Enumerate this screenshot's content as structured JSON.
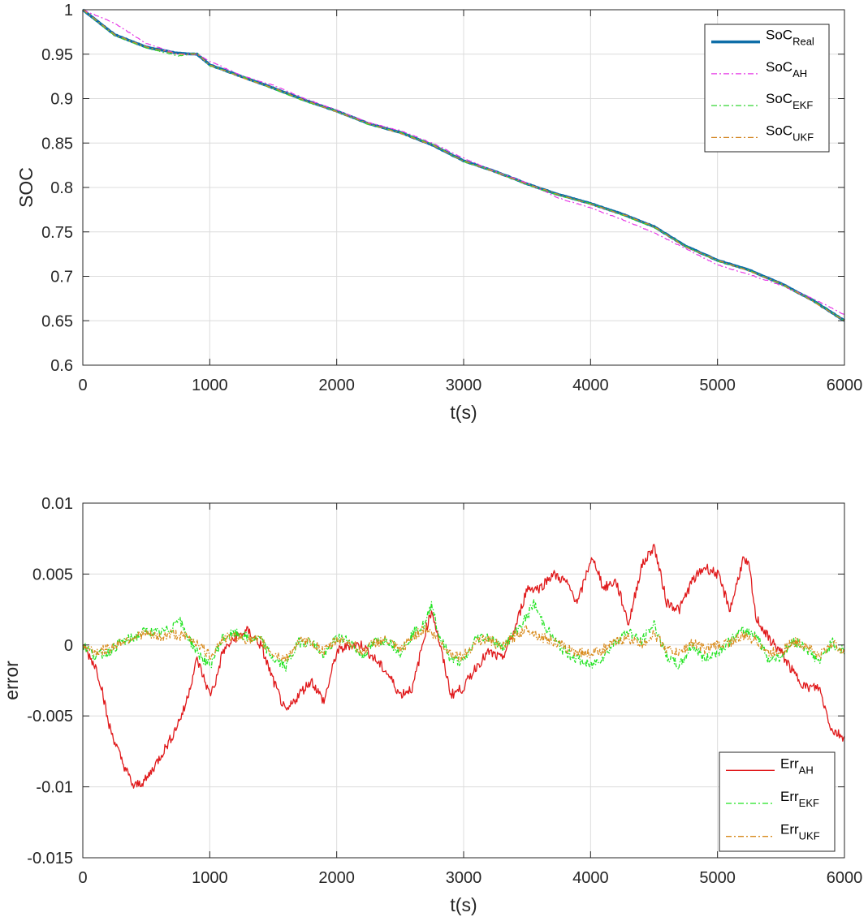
{
  "colors": {
    "real": "#0e6ea8",
    "ah": "#e637e6",
    "ekf": "#33d633",
    "ukf": "#d58a2a",
    "err_ah": "#e0191b",
    "err_ekf": "#21e321",
    "err_ukf": "#d88a1c",
    "grid": "#dcdcdc",
    "axis": "#262626"
  },
  "chart_data": [
    {
      "type": "line",
      "xlabel": "t(s)",
      "ylabel": "SOC",
      "xlim": [
        0,
        6000
      ],
      "ylim": [
        0.6,
        1
      ],
      "grid": true,
      "legend_position": "top-right",
      "xticks": [
        0,
        1000,
        2000,
        3000,
        4000,
        5000,
        6000
      ],
      "xtick_labels": [
        "0",
        "1000",
        "2000",
        "3000",
        "4000",
        "5000",
        "6000"
      ],
      "yticks": [
        0.6,
        0.65,
        0.7,
        0.75,
        0.8,
        0.85,
        0.9,
        0.95,
        1
      ],
      "ytick_labels": [
        "0.6",
        "0.65",
        "0.7",
        "0.75",
        "0.8",
        "0.85",
        "0.9",
        "0.95",
        "1"
      ],
      "series": [
        {
          "name": "SoC",
          "sub": "Real",
          "color_key": "real",
          "style": "solid-thick",
          "x": [
            0,
            250,
            500,
            750,
            900,
            1000,
            1250,
            1500,
            1750,
            2000,
            2250,
            2500,
            2750,
            3000,
            3250,
            3500,
            3750,
            4000,
            4250,
            4500,
            4750,
            5000,
            5250,
            5500,
            5750,
            6000
          ],
          "y": [
            1.0,
            0.972,
            0.958,
            0.951,
            0.95,
            0.938,
            0.925,
            0.912,
            0.898,
            0.886,
            0.872,
            0.862,
            0.848,
            0.83,
            0.818,
            0.804,
            0.792,
            0.782,
            0.77,
            0.756,
            0.734,
            0.718,
            0.707,
            0.692,
            0.673,
            0.65
          ]
        },
        {
          "name": "SoC",
          "sub": "AH",
          "color_key": "ah",
          "style": "dashdot",
          "x": [
            0,
            250,
            500,
            750,
            900,
            1000,
            1250,
            1500,
            1750,
            2000,
            2250,
            2500,
            2750,
            3000,
            3250,
            3500,
            3750,
            4000,
            4250,
            4500,
            4750,
            5000,
            5250,
            5500,
            5750,
            6000
          ],
          "y": [
            1.0,
            0.985,
            0.962,
            0.95,
            0.95,
            0.942,
            0.926,
            0.915,
            0.9,
            0.887,
            0.873,
            0.864,
            0.85,
            0.833,
            0.818,
            0.805,
            0.788,
            0.777,
            0.764,
            0.749,
            0.731,
            0.713,
            0.702,
            0.69,
            0.675,
            0.657
          ]
        },
        {
          "name": "SoC",
          "sub": "EKF",
          "color_key": "ekf",
          "style": "dashdot",
          "x": [
            0,
            250,
            500,
            750,
            900,
            1000,
            1250,
            1500,
            1750,
            2000,
            2250,
            2500,
            2750,
            3000,
            3250,
            3500,
            3750,
            4000,
            4250,
            4500,
            4750,
            5000,
            5250,
            5500,
            5750,
            6000
          ],
          "y": [
            1.0,
            0.971,
            0.957,
            0.948,
            0.951,
            0.937,
            0.925,
            0.911,
            0.897,
            0.886,
            0.871,
            0.862,
            0.849,
            0.829,
            0.818,
            0.803,
            0.791,
            0.782,
            0.769,
            0.755,
            0.734,
            0.717,
            0.707,
            0.691,
            0.673,
            0.65
          ]
        },
        {
          "name": "SoC",
          "sub": "UKF",
          "color_key": "ukf",
          "style": "dashdot",
          "x": [
            0,
            250,
            500,
            750,
            900,
            1000,
            1250,
            1500,
            1750,
            2000,
            2250,
            2500,
            2750,
            3000,
            3250,
            3500,
            3750,
            4000,
            4250,
            4500,
            4750,
            5000,
            5250,
            5500,
            5750,
            6000
          ],
          "y": [
            1.0,
            0.972,
            0.958,
            0.95,
            0.95,
            0.938,
            0.924,
            0.912,
            0.898,
            0.885,
            0.872,
            0.861,
            0.848,
            0.83,
            0.817,
            0.804,
            0.792,
            0.781,
            0.77,
            0.756,
            0.733,
            0.718,
            0.706,
            0.692,
            0.672,
            0.65
          ]
        }
      ]
    },
    {
      "type": "line",
      "xlabel": "t(s)",
      "ylabel": "error",
      "xlim": [
        0,
        6000
      ],
      "ylim": [
        -0.015,
        0.01
      ],
      "grid": true,
      "legend_position": "bottom-right",
      "xticks": [
        0,
        1000,
        2000,
        3000,
        4000,
        5000,
        6000
      ],
      "xtick_labels": [
        "0",
        "1000",
        "2000",
        "3000",
        "4000",
        "5000",
        "6000"
      ],
      "yticks": [
        -0.015,
        -0.01,
        -0.005,
        0,
        0.005,
        0.01
      ],
      "ytick_labels": [
        "-0.015",
        "-0.01",
        "-0.005",
        "0",
        "0.005",
        "0.01"
      ],
      "series": [
        {
          "name": "Err",
          "sub": "AH",
          "color_key": "err_ah",
          "style": "solid",
          "x": [
            0,
            100,
            150,
            200,
            300,
            400,
            500,
            600,
            700,
            800,
            900,
            1000,
            1050,
            1100,
            1200,
            1300,
            1400,
            1500,
            1600,
            1700,
            1800,
            1900,
            2000,
            2100,
            2200,
            2300,
            2400,
            2500,
            2600,
            2700,
            2750,
            2850,
            2900,
            3000,
            3100,
            3200,
            3300,
            3400,
            3500,
            3600,
            3700,
            3800,
            3900,
            4000,
            4050,
            4100,
            4200,
            4300,
            4400,
            4500,
            4600,
            4700,
            4800,
            4900,
            5000,
            5100,
            5200,
            5250,
            5300,
            5400,
            5500,
            5600,
            5700,
            5800,
            5900,
            6000
          ],
          "y": [
            0,
            -0.0015,
            -0.003,
            -0.0055,
            -0.008,
            -0.01,
            -0.0095,
            -0.008,
            -0.0065,
            -0.0045,
            -0.001,
            -0.0035,
            -0.0025,
            -0.0005,
            0.0005,
            0.001,
            0.0,
            -0.0025,
            -0.0048,
            -0.0035,
            -0.0025,
            -0.004,
            -0.0005,
            0.0,
            0.0,
            -0.001,
            -0.002,
            -0.0035,
            -0.003,
            0.001,
            0.0025,
            -0.0015,
            -0.0035,
            -0.003,
            -0.0015,
            -0.0005,
            -0.001,
            0.001,
            0.004,
            0.004,
            0.005,
            0.0045,
            0.003,
            0.006,
            0.0055,
            0.004,
            0.0045,
            0.0015,
            0.0055,
            0.007,
            0.003,
            0.0025,
            0.0045,
            0.0055,
            0.005,
            0.0025,
            0.006,
            0.0055,
            0.002,
            0.0005,
            -0.0005,
            -0.002,
            -0.003,
            -0.003,
            -0.006,
            -0.0065
          ]
        },
        {
          "name": "Err",
          "sub": "EKF",
          "color_key": "err_ekf",
          "style": "dashdot",
          "x": [
            0,
            100,
            200,
            300,
            400,
            500,
            600,
            700,
            750,
            800,
            900,
            1000,
            1100,
            1200,
            1300,
            1400,
            1500,
            1600,
            1700,
            1800,
            1900,
            2000,
            2100,
            2200,
            2300,
            2400,
            2500,
            2600,
            2700,
            2750,
            2800,
            2900,
            3000,
            3100,
            3200,
            3300,
            3400,
            3500,
            3550,
            3600,
            3700,
            3800,
            3900,
            4000,
            4100,
            4200,
            4300,
            4400,
            4500,
            4600,
            4700,
            4800,
            4900,
            5000,
            5100,
            5200,
            5300,
            5400,
            5500,
            5600,
            5700,
            5800,
            5900,
            6000
          ],
          "y": [
            0,
            -0.0008,
            -0.0005,
            0.0002,
            0.0005,
            0.001,
            0.0008,
            0.0012,
            0.002,
            0.001,
            -0.0005,
            -0.0015,
            0.0005,
            0.0008,
            0.0005,
            0.0004,
            -0.001,
            -0.0015,
            0.0002,
            0.0003,
            -0.0008,
            0.0005,
            0.0003,
            -0.0008,
            0.0002,
            0.0004,
            -0.0005,
            0.0008,
            0.0015,
            0.003,
            0.0008,
            -0.001,
            -0.0012,
            0.0005,
            0.0006,
            -0.0002,
            0.0008,
            0.002,
            0.003,
            0.002,
            0.0005,
            -0.0005,
            -0.001,
            -0.0015,
            -0.0008,
            0.0003,
            0.001,
            0.0002,
            0.0015,
            -0.0008,
            -0.0015,
            0.0,
            -0.001,
            -0.0005,
            0.0003,
            0.001,
            0.0008,
            -0.001,
            -0.0008,
            0.0003,
            -0.0002,
            -0.0012,
            0.0002,
            -0.0005
          ]
        },
        {
          "name": "Err",
          "sub": "UKF",
          "color_key": "err_ukf",
          "style": "dashdot",
          "x": [
            0,
            100,
            200,
            300,
            400,
            500,
            600,
            700,
            800,
            900,
            1000,
            1100,
            1200,
            1300,
            1400,
            1500,
            1600,
            1700,
            1800,
            1900,
            2000,
            2100,
            2200,
            2300,
            2400,
            2500,
            2600,
            2700,
            2800,
            2900,
            3000,
            3100,
            3200,
            3300,
            3400,
            3500,
            3600,
            3700,
            3800,
            3900,
            4000,
            4100,
            4200,
            4300,
            4400,
            4500,
            4600,
            4700,
            4800,
            4900,
            5000,
            5100,
            5200,
            5300,
            5400,
            5500,
            5600,
            5700,
            5800,
            5900,
            6000
          ],
          "y": [
            0,
            -0.0005,
            -0.0003,
            0.0002,
            0.0006,
            0.0008,
            0.0005,
            0.0008,
            0.0006,
            0.0002,
            -0.0008,
            0.0004,
            0.0006,
            0.0004,
            0.0003,
            -0.0006,
            -0.001,
            0.0002,
            0.0002,
            -0.0005,
            0.0004,
            0.0002,
            -0.0005,
            0.0002,
            0.0003,
            -0.0004,
            0.0006,
            0.0012,
            0.0004,
            -0.0006,
            -0.0008,
            0.0003,
            0.0004,
            -0.0002,
            0.0006,
            0.0012,
            0.0006,
            0.0003,
            -0.0002,
            -0.0005,
            -0.0006,
            -0.0003,
            0.0002,
            0.0005,
            0.0,
            0.0008,
            -0.0003,
            -0.0006,
            0.0002,
            -0.0003,
            0.0,
            0.0002,
            0.0006,
            0.0004,
            -0.0006,
            -0.0004,
            0.0002,
            0.0,
            -0.0008,
            0.0001,
            -0.0004
          ]
        }
      ]
    }
  ]
}
